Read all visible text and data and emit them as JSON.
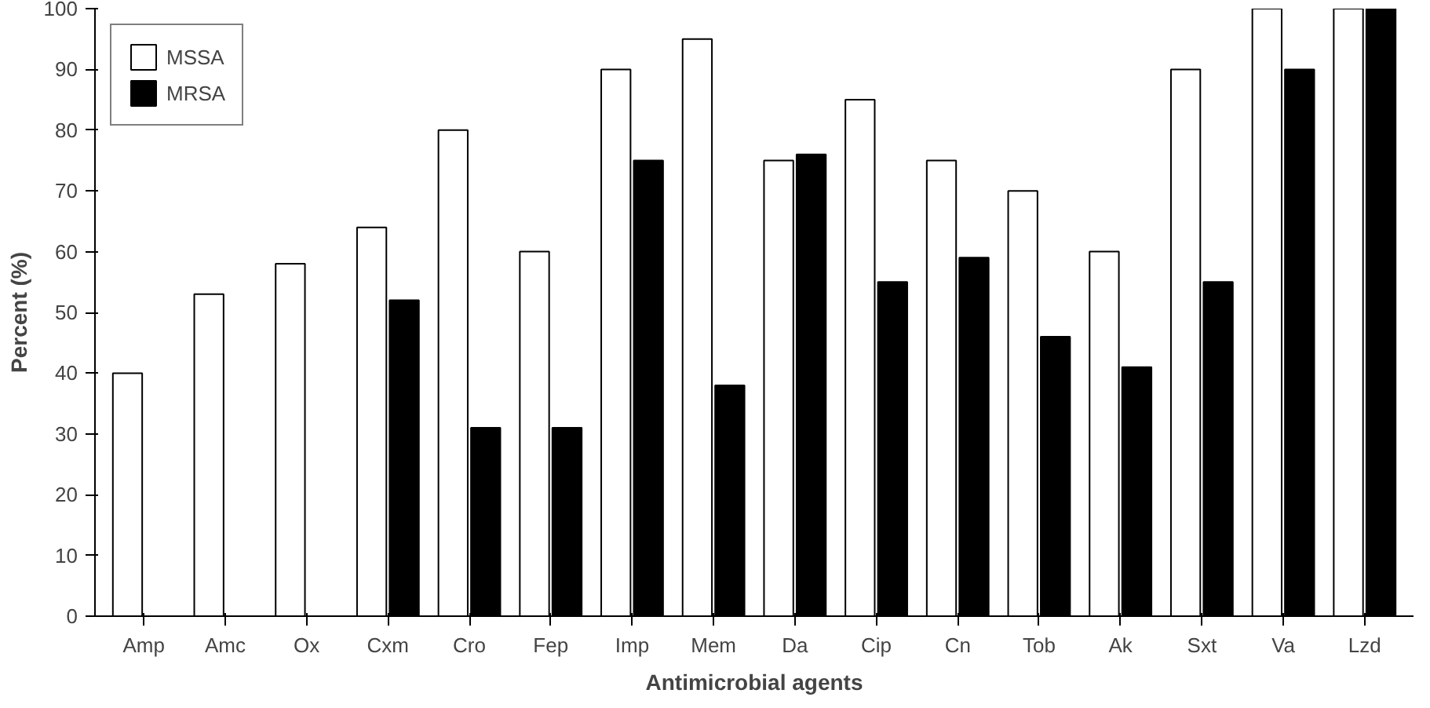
{
  "chart_data": {
    "type": "bar",
    "xlabel": "Antimicrobial agents",
    "ylabel": "Percent (%)",
    "categories": [
      "Amp",
      "Amc",
      "Ox",
      "Cxm",
      "Cro",
      "Fep",
      "Imp",
      "Mem",
      "Da",
      "Cip",
      "Cn",
      "Tob",
      "Ak",
      "Sxt",
      "Va",
      "Lzd"
    ],
    "series": [
      {
        "name": "MSSA",
        "color": "#ffffff",
        "values": [
          40,
          53,
          58,
          64,
          80,
          60,
          90,
          95,
          75,
          85,
          75,
          70,
          60,
          90,
          100,
          100
        ]
      },
      {
        "name": "MRSA",
        "color": "#000000",
        "values": [
          0,
          0,
          0,
          52,
          31,
          31,
          75,
          38,
          76,
          55,
          59,
          46,
          41,
          55,
          90,
          100
        ]
      }
    ],
    "ylim": [
      0,
      100
    ],
    "yticks": [
      0,
      10,
      20,
      30,
      40,
      50,
      60,
      70,
      80,
      90,
      100
    ],
    "grid": false,
    "legend": "top left"
  }
}
